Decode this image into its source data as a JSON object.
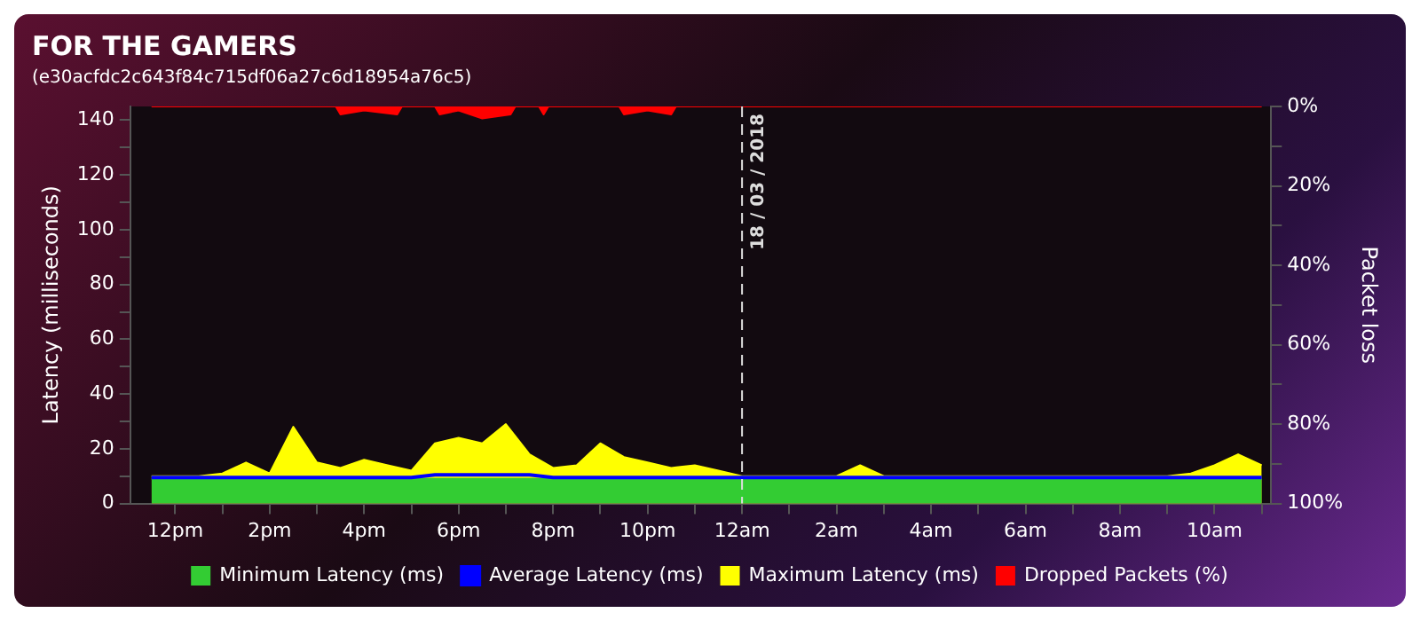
{
  "chart_data": {
    "type": "area",
    "title": "FOR THE GAMERS",
    "subtitle": "(e30acfdc2c643f84c715df06a27c6d18954a76c5)",
    "ylabel": "Latency (milliseconds)",
    "y2label": "Packet loss",
    "x": [
      "2018-03-17T11:30",
      "2018-03-17T12:00",
      "2018-03-17T12:30",
      "2018-03-17T13:00",
      "2018-03-17T13:30",
      "2018-03-17T14:00",
      "2018-03-17T14:30",
      "2018-03-17T15:00",
      "2018-03-17T15:30",
      "2018-03-17T16:00",
      "2018-03-17T16:30",
      "2018-03-17T17:00",
      "2018-03-17T17:30",
      "2018-03-17T18:00",
      "2018-03-17T18:30",
      "2018-03-17T19:00",
      "2018-03-17T19:30",
      "2018-03-17T20:00",
      "2018-03-17T20:30",
      "2018-03-17T21:00",
      "2018-03-17T21:30",
      "2018-03-17T22:00",
      "2018-03-17T22:30",
      "2018-03-17T23:00",
      "2018-03-17T23:30",
      "2018-03-18T00:00",
      "2018-03-18T00:30",
      "2018-03-18T01:00",
      "2018-03-18T01:30",
      "2018-03-18T02:00",
      "2018-03-18T02:30",
      "2018-03-18T03:00",
      "2018-03-18T03:30",
      "2018-03-18T04:00",
      "2018-03-18T04:30",
      "2018-03-18T05:00",
      "2018-03-18T05:30",
      "2018-03-18T06:00",
      "2018-03-18T06:30",
      "2018-03-18T07:00",
      "2018-03-18T07:30",
      "2018-03-18T08:00",
      "2018-03-18T08:30",
      "2018-03-18T09:00",
      "2018-03-18T09:30",
      "2018-03-18T10:00",
      "2018-03-18T10:30",
      "2018-03-18T11:00"
    ],
    "series": [
      {
        "name": "Minimum Latency (ms)",
        "color": "#33cc33",
        "values": [
          9,
          9,
          9,
          9,
          9,
          9,
          9,
          9,
          9,
          9,
          9,
          9,
          9,
          9,
          9,
          9,
          9,
          9,
          9,
          9,
          9,
          9,
          9,
          9,
          9,
          9,
          9,
          9,
          9,
          9,
          9,
          9,
          9,
          9,
          9,
          9,
          9,
          9,
          9,
          9,
          9,
          9,
          9,
          9,
          9,
          9,
          9,
          9
        ]
      },
      {
        "name": "Average Latency (ms)",
        "type": "line",
        "color": "#0000ff",
        "values": [
          9.5,
          9.5,
          9.5,
          9.5,
          9.5,
          9.5,
          9.5,
          9.5,
          9.5,
          9.5,
          9.5,
          9.5,
          10.5,
          10.5,
          10.5,
          10.5,
          10.5,
          9.5,
          9.5,
          9.5,
          9.5,
          9.5,
          9.5,
          9.5,
          9.5,
          9.5,
          9.5,
          9.5,
          9.5,
          9.5,
          9.5,
          9.5,
          9.5,
          9.5,
          9.5,
          9.5,
          9.5,
          9.5,
          9.5,
          9.5,
          9.5,
          9.5,
          9.5,
          9.5,
          9.5,
          9.5,
          9.5,
          9.5
        ]
      },
      {
        "name": "Maximum Latency (ms)",
        "color": "#ffff00",
        "values": [
          10,
          10,
          10,
          11,
          15,
          11,
          28,
          15,
          13,
          16,
          14,
          12,
          22,
          24,
          22,
          29,
          18,
          13,
          14,
          22,
          17,
          15,
          13,
          14,
          12,
          10,
          10,
          10,
          10,
          10,
          14,
          10,
          10,
          10,
          10,
          10,
          10,
          10,
          10,
          10,
          10,
          10,
          10,
          10,
          11,
          14,
          18,
          14
        ]
      },
      {
        "name": "Dropped Packets (%)",
        "axis": "y2",
        "color": "#ff0000",
        "x": [
          "2018-03-17T11:30",
          "2018-03-17T15:24",
          "2018-03-17T15:30",
          "2018-03-17T16:00",
          "2018-03-17T16:42",
          "2018-03-17T16:48",
          "2018-03-17T17:30",
          "2018-03-17T17:36",
          "2018-03-17T18:00",
          "2018-03-17T18:30",
          "2018-03-17T19:06",
          "2018-03-17T19:12",
          "2018-03-17T19:42",
          "2018-03-17T19:48",
          "2018-03-17T19:54",
          "2018-03-17T21:24",
          "2018-03-17T21:30",
          "2018-03-17T22:00",
          "2018-03-17T22:30",
          "2018-03-17T22:36",
          "2018-03-18T11:00"
        ],
        "values": [
          0,
          0,
          2,
          1,
          2,
          0,
          0,
          2,
          1,
          3,
          2,
          0,
          0,
          2,
          0,
          0,
          2,
          1,
          2,
          0,
          0
        ]
      }
    ],
    "xlim": [
      "2018-03-17T11:03",
      "2018-03-18T11:12"
    ],
    "xticks": [
      {
        "value": "2018-03-17T12:00",
        "label": "12pm"
      },
      {
        "value": "2018-03-17T13:00",
        "label": null
      },
      {
        "value": "2018-03-17T14:00",
        "label": "2pm"
      },
      {
        "value": "2018-03-17T15:00",
        "label": null
      },
      {
        "value": "2018-03-17T16:00",
        "label": "4pm"
      },
      {
        "value": "2018-03-17T17:00",
        "label": null
      },
      {
        "value": "2018-03-17T18:00",
        "label": "6pm"
      },
      {
        "value": "2018-03-17T19:00",
        "label": null
      },
      {
        "value": "2018-03-17T20:00",
        "label": "8pm"
      },
      {
        "value": "2018-03-17T21:00",
        "label": null
      },
      {
        "value": "2018-03-17T22:00",
        "label": "10pm"
      },
      {
        "value": "2018-03-17T23:00",
        "label": null
      },
      {
        "value": "2018-03-18T00:00",
        "label": "12am"
      },
      {
        "value": "2018-03-18T01:00",
        "label": null
      },
      {
        "value": "2018-03-18T02:00",
        "label": "2am"
      },
      {
        "value": "2018-03-18T03:00",
        "label": null
      },
      {
        "value": "2018-03-18T04:00",
        "label": "4am"
      },
      {
        "value": "2018-03-18T05:00",
        "label": null
      },
      {
        "value": "2018-03-18T06:00",
        "label": "6am"
      },
      {
        "value": "2018-03-18T07:00",
        "label": null
      },
      {
        "value": "2018-03-18T08:00",
        "label": "8am"
      },
      {
        "value": "2018-03-18T09:00",
        "label": null
      },
      {
        "value": "2018-03-18T10:00",
        "label": "10am"
      },
      {
        "value": "2018-03-18T11:00",
        "label": null
      }
    ],
    "ylim": [
      0,
      145
    ],
    "yticks": [
      0,
      {
        "value": 10,
        "label": null
      },
      20,
      {
        "value": 30,
        "label": null
      },
      40,
      {
        "value": 50,
        "label": null
      },
      60,
      {
        "value": 70,
        "label": null
      },
      80,
      {
        "value": 90,
        "label": null
      },
      100,
      {
        "value": 110,
        "label": null
      },
      120,
      {
        "value": 130,
        "label": null
      },
      140
    ],
    "y2lim": [
      100,
      0
    ],
    "y2ticks": [
      {
        "value": 0,
        "label": "0%"
      },
      {
        "value": 10,
        "label": null
      },
      {
        "value": 20,
        "label": "20%"
      },
      {
        "value": 30,
        "label": null
      },
      {
        "value": 40,
        "label": "40%"
      },
      {
        "value": 50,
        "label": null
      },
      {
        "value": 60,
        "label": "60%"
      },
      {
        "value": 70,
        "label": null
      },
      {
        "value": 80,
        "label": "80%"
      },
      {
        "value": 90,
        "label": null
      },
      {
        "value": 100,
        "label": "100%"
      }
    ],
    "ref_lines": [
      {
        "axis": "x",
        "value": "2018-03-18T00:00",
        "label": "18 / 03 / 2018",
        "color": "#dddddd",
        "line_style": "dashed"
      }
    ],
    "grid": false,
    "legend": "bottom"
  }
}
